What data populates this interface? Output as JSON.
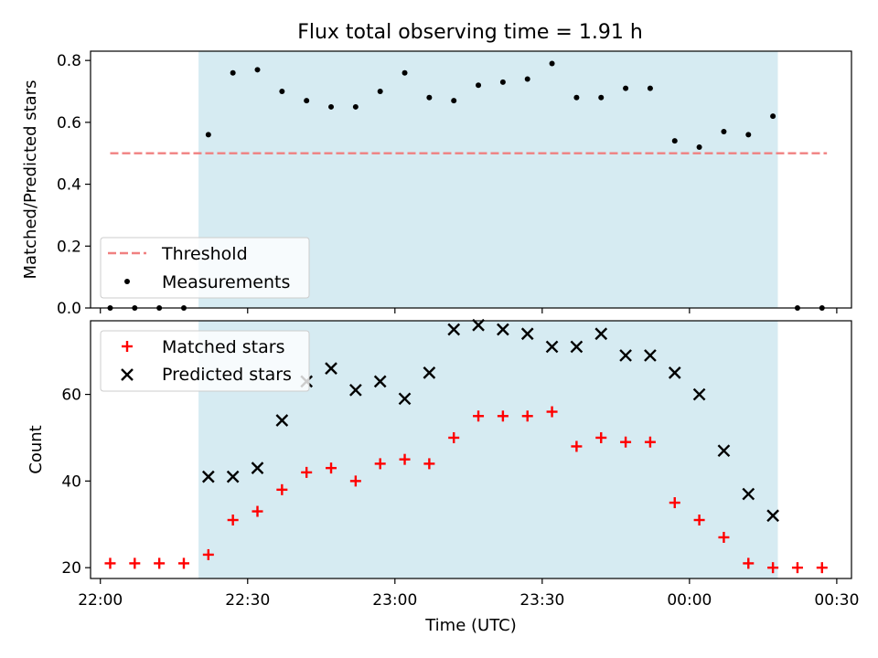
{
  "chart_data": [
    {
      "type": "scatter",
      "title": "Flux total observing time = 1.91 h",
      "ylabel": "Matched/Predicted stars",
      "xlabel": "",
      "xlim": [
        "21:58",
        "00:33"
      ],
      "ylim": [
        0,
        0.83
      ],
      "yticks": [
        0.0,
        0.2,
        0.4,
        0.6,
        0.8
      ],
      "ytick_labels": [
        "0.0",
        "0.2",
        "0.4",
        "0.6",
        "0.8"
      ],
      "shaded_span": [
        "22:20",
        "00:18"
      ],
      "threshold": {
        "name": "Threshold",
        "y": 0.5,
        "x": [
          "22:02",
          "00:28"
        ],
        "color": "#f08080",
        "style": "dashed"
      },
      "series": [
        {
          "name": "Measurements",
          "marker": "dot",
          "color": "#000000",
          "x": [
            "22:02",
            "22:07",
            "22:12",
            "22:17",
            "22:22",
            "22:27",
            "22:32",
            "22:37",
            "22:42",
            "22:47",
            "22:52",
            "22:57",
            "23:02",
            "23:07",
            "23:12",
            "23:17",
            "23:22",
            "23:27",
            "23:32",
            "23:37",
            "23:42",
            "23:47",
            "23:52",
            "23:57",
            "00:02",
            "00:07",
            "00:12",
            "00:17",
            "00:22",
            "00:27"
          ],
          "y": [
            0.0,
            0.0,
            0.0,
            0.0,
            0.56,
            0.76,
            0.77,
            0.7,
            0.67,
            0.65,
            0.65,
            0.7,
            0.76,
            0.68,
            0.67,
            0.72,
            0.73,
            0.74,
            0.79,
            0.68,
            0.68,
            0.71,
            0.71,
            0.54,
            0.52,
            0.57,
            0.56,
            0.62,
            0.0,
            0.0
          ]
        }
      ],
      "legend": {
        "placement": "lower-left",
        "entries": [
          "Threshold",
          "Measurements"
        ]
      }
    },
    {
      "type": "scatter",
      "title": "",
      "ylabel": "Count",
      "xlabel": "Time (UTC)",
      "xlim": [
        "21:58",
        "00:33"
      ],
      "ylim": [
        17.5,
        77
      ],
      "yticks": [
        20,
        40,
        60
      ],
      "ytick_labels": [
        "20",
        "40",
        "60"
      ],
      "xticks": [
        "22:00",
        "22:30",
        "23:00",
        "23:30",
        "00:00",
        "00:30"
      ],
      "shaded_span": [
        "22:20",
        "00:18"
      ],
      "series": [
        {
          "name": "Matched stars",
          "marker": "plus",
          "color": "#ff0000",
          "x": [
            "22:02",
            "22:07",
            "22:12",
            "22:17",
            "22:22",
            "22:27",
            "22:32",
            "22:37",
            "22:42",
            "22:47",
            "22:52",
            "22:57",
            "23:02",
            "23:07",
            "23:12",
            "23:17",
            "23:22",
            "23:27",
            "23:32",
            "23:37",
            "23:42",
            "23:47",
            "23:52",
            "23:57",
            "00:02",
            "00:07",
            "00:12",
            "00:17",
            "00:22",
            "00:27"
          ],
          "y": [
            21,
            21,
            21,
            21,
            23,
            31,
            33,
            38,
            42,
            43,
            40,
            44,
            45,
            44,
            50,
            55,
            55,
            55,
            56,
            48,
            50,
            49,
            49,
            35,
            31,
            27,
            21,
            20,
            20,
            20
          ]
        },
        {
          "name": "Predicted stars",
          "marker": "x",
          "color": "#000000",
          "x": [
            "22:22",
            "22:27",
            "22:32",
            "22:37",
            "22:42",
            "22:47",
            "22:52",
            "22:57",
            "23:02",
            "23:07",
            "23:12",
            "23:17",
            "23:22",
            "23:27",
            "23:32",
            "23:37",
            "23:42",
            "23:47",
            "23:52",
            "23:57",
            "00:02",
            "00:07",
            "00:12",
            "00:17"
          ],
          "y": [
            41,
            41,
            43,
            54,
            63,
            66,
            61,
            63,
            59,
            65,
            75,
            76,
            75,
            74,
            71,
            71,
            74,
            69,
            69,
            65,
            60,
            47,
            37,
            32
          ]
        }
      ],
      "legend": {
        "placement": "upper-left",
        "entries": [
          "Matched stars",
          "Predicted stars"
        ]
      }
    }
  ],
  "colors": {
    "shade": "#add8e6",
    "threshold": "#f08080",
    "matched": "#ff0000",
    "predicted": "#000000",
    "measurements": "#000000"
  }
}
